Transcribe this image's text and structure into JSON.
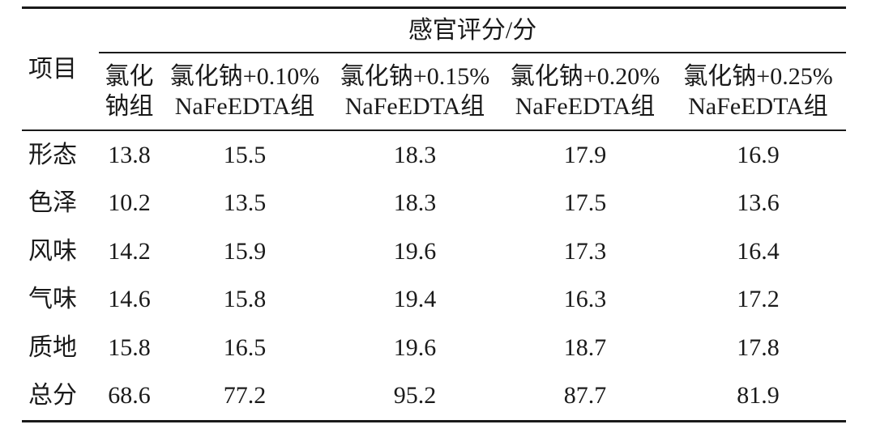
{
  "table": {
    "corner_label": "项目",
    "spanner_label": "感官评分/分",
    "columns": [
      {
        "line1": "氯化",
        "line2": "钠组"
      },
      {
        "line1": "氯化钠+0.10%",
        "line2": "NaFeEDTA组"
      },
      {
        "line1": "氯化钠+0.15%",
        "line2": "NaFeEDTA组"
      },
      {
        "line1": "氯化钠+0.20%",
        "line2": "NaFeEDTA组"
      },
      {
        "line1": "氯化钠+0.25%",
        "line2": "NaFeEDTA组"
      }
    ],
    "rows": [
      {
        "label": "形态",
        "values": [
          "13.8",
          "15.5",
          "18.3",
          "17.9",
          "16.9"
        ]
      },
      {
        "label": "色泽",
        "values": [
          "10.2",
          "13.5",
          "18.3",
          "17.5",
          "13.6"
        ]
      },
      {
        "label": "风味",
        "values": [
          "14.2",
          "15.9",
          "19.6",
          "17.3",
          "16.4"
        ]
      },
      {
        "label": "气味",
        "values": [
          "14.6",
          "15.8",
          "19.4",
          "16.3",
          "17.2"
        ]
      },
      {
        "label": "质地",
        "values": [
          "15.8",
          "16.5",
          "19.6",
          "18.7",
          "17.8"
        ]
      },
      {
        "label": "总分",
        "values": [
          "68.6",
          "77.2",
          "95.2",
          "87.7",
          "81.9"
        ]
      }
    ],
    "colors": {
      "text": "#1a1a1a",
      "rule": "#1a1a1a",
      "background": "#ffffff"
    }
  }
}
